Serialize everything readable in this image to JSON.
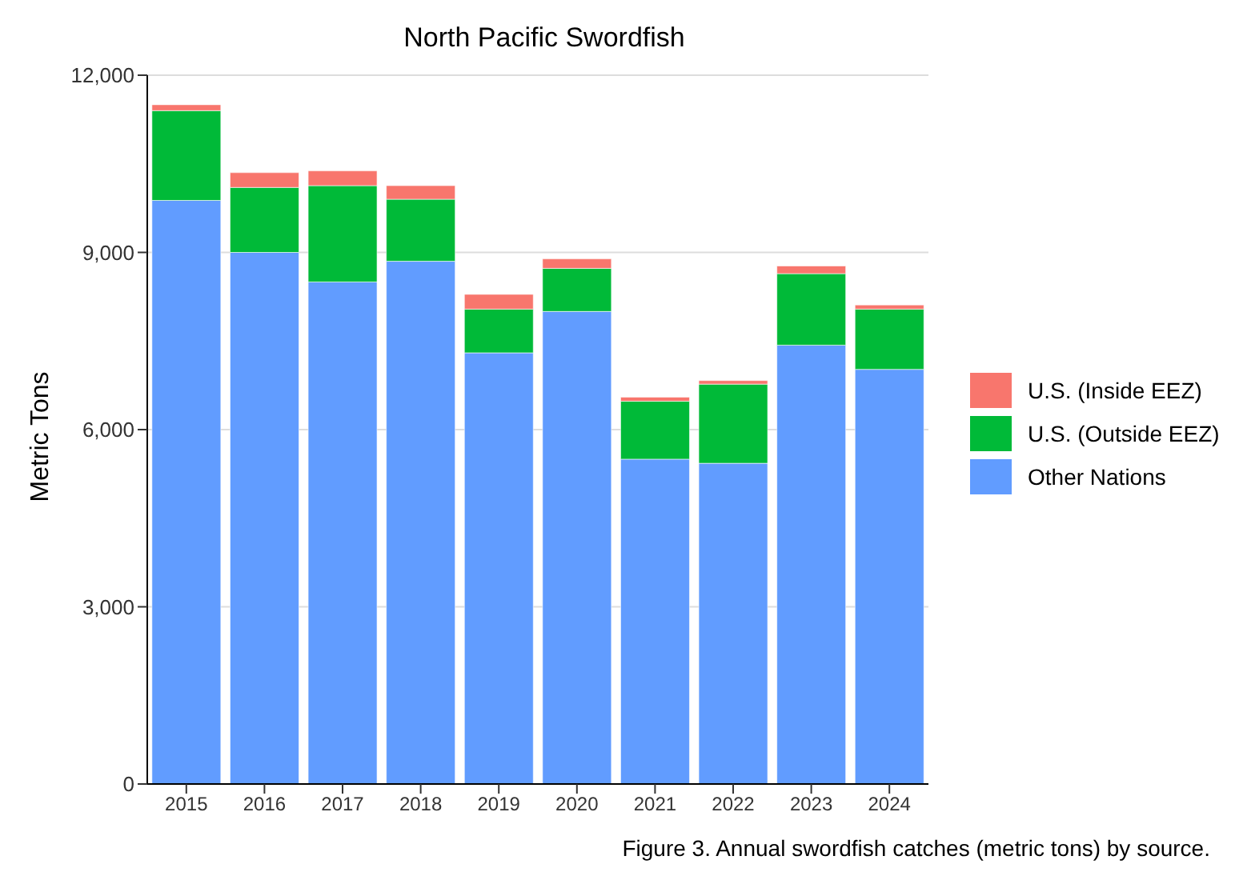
{
  "chart_data": {
    "type": "bar",
    "title": "North Pacific Swordfish",
    "ylabel": "Metric Tons",
    "categories": [
      "2015",
      "2016",
      "2017",
      "2018",
      "2019",
      "2020",
      "2021",
      "2022",
      "2023",
      "2024"
    ],
    "stacked": true,
    "series": [
      {
        "name": "Other Nations",
        "color": "#619cff",
        "values": [
          9880,
          9000,
          8500,
          8850,
          7300,
          8000,
          5500,
          5430,
          7430,
          7020
        ]
      },
      {
        "name": "U.S. (Outside EEZ)",
        "color": "#00ba38",
        "values": [
          1520,
          1100,
          1630,
          1050,
          740,
          730,
          980,
          1340,
          1210,
          1020
        ]
      },
      {
        "name": "U.S. (Inside EEZ)",
        "color": "#f8766d",
        "values": [
          100,
          250,
          250,
          230,
          250,
          160,
          70,
          60,
          130,
          70
        ]
      }
    ],
    "ylim": [
      0,
      12000
    ],
    "yticks": [
      {
        "value": 0,
        "label": "0"
      },
      {
        "value": 3000,
        "label": "3,000"
      },
      {
        "value": 6000,
        "label": "6,000"
      },
      {
        "value": 9000,
        "label": "9,000"
      },
      {
        "value": 12000,
        "label": "12,000"
      }
    ],
    "grid": "y",
    "legend": "right",
    "annotations": [
      "Figure 3. Annual swordfish catches (metric tons) by source."
    ]
  }
}
